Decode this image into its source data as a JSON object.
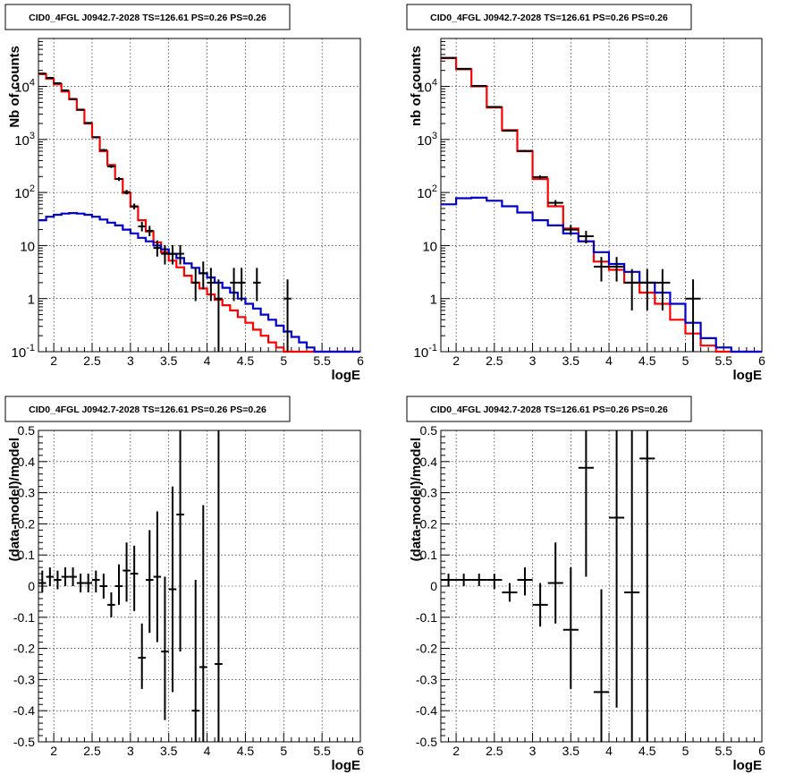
{
  "panel_title": "CID0_4FGL J0942.7-2028 TS=126.61 PS=0.26 PS=0.26",
  "chart_data": [
    {
      "type": "line",
      "subtype": "step-histogram-with-errorbars",
      "title": "CID0_4FGL J0942.7-2028 TS=126.61 PS=0.26 PS=0.26",
      "xlabel": "logE",
      "ylabel": "Nb of counts",
      "xlim": [
        1.8,
        6.0
      ],
      "ylim": [
        0.1,
        80000
      ],
      "yscale": "log",
      "grid": true,
      "xticks": [
        "2",
        "2.5",
        "3",
        "3.5",
        "4",
        "4.5",
        "5",
        "5.5",
        "6"
      ],
      "yticks": [
        {
          "v": 0.1,
          "label": "10^-1"
        },
        {
          "v": 1,
          "label": "1"
        },
        {
          "v": 10,
          "label": "10"
        },
        {
          "v": 100,
          "label": "10^2"
        },
        {
          "v": 1000,
          "label": "10^3"
        },
        {
          "v": 10000,
          "label": "10^4"
        }
      ],
      "bin_width": 0.1,
      "bin_start": 1.8,
      "series": [
        {
          "color": "#ff0000",
          "style": "step",
          "values": [
            17000,
            14000,
            11000,
            8000,
            5700,
            3600,
            2000,
            1100,
            600,
            330,
            180,
            98,
            54,
            30,
            18.5,
            11.5,
            7.5,
            5.2,
            3.9,
            2.7,
            2.0,
            1.55,
            1.2,
            0.95,
            0.75,
            0.6,
            0.45,
            0.35,
            0.26,
            0.2,
            0.15,
            0.12,
            0.1,
            0.1,
            0.1,
            0.1,
            0.1,
            0.1,
            0.1,
            0.1,
            0.1,
            0.1
          ]
        },
        {
          "color": "#0000cc",
          "style": "step",
          "values": [
            30,
            35,
            38,
            40,
            41,
            40,
            38,
            35,
            31,
            27,
            24,
            20,
            17,
            14,
            12,
            10,
            8.5,
            7.0,
            5.8,
            4.6,
            3.8,
            3.0,
            2.5,
            2.0,
            1.6,
            1.3,
            1.0,
            0.8,
            0.65,
            0.5,
            0.4,
            0.31,
            0.24,
            0.19,
            0.15,
            0.12,
            0.1,
            0.1,
            0.1,
            0.1,
            0.1,
            0.1
          ]
        },
        {
          "color": "#000000",
          "style": "points",
          "points": [
            {
              "x": 1.85,
              "y": 17500,
              "lo": 17200,
              "hi": 17800
            },
            {
              "x": 1.95,
              "y": 14500,
              "lo": 14200,
              "hi": 14800
            },
            {
              "x": 2.05,
              "y": 11500,
              "lo": 11200,
              "hi": 11800
            },
            {
              "x": 2.15,
              "y": 8400,
              "lo": 8200,
              "hi": 8600
            },
            {
              "x": 2.25,
              "y": 5800,
              "lo": 5650,
              "hi": 5950
            },
            {
              "x": 2.35,
              "y": 3650,
              "lo": 3550,
              "hi": 3750
            },
            {
              "x": 2.45,
              "y": 2050,
              "lo": 1980,
              "hi": 2120
            },
            {
              "x": 2.55,
              "y": 1100,
              "lo": 1060,
              "hi": 1140
            },
            {
              "x": 2.65,
              "y": 630,
              "lo": 600,
              "hi": 660
            },
            {
              "x": 2.75,
              "y": 310,
              "lo": 290,
              "hi": 330
            },
            {
              "x": 2.85,
              "y": 180,
              "lo": 165,
              "hi": 195
            },
            {
              "x": 2.95,
              "y": 102,
              "lo": 92,
              "hi": 112
            },
            {
              "x": 3.05,
              "y": 55,
              "lo": 48,
              "hi": 62
            },
            {
              "x": 3.15,
              "y": 23,
              "lo": 18.5,
              "hi": 28
            },
            {
              "x": 3.25,
              "y": 19,
              "lo": 15,
              "hi": 23.5
            },
            {
              "x": 3.35,
              "y": 9,
              "lo": 6.2,
              "hi": 12.5
            },
            {
              "x": 3.45,
              "y": 7,
              "lo": 4.4,
              "hi": 10.2
            },
            {
              "x": 3.55,
              "y": 7,
              "lo": 4.4,
              "hi": 10.2
            },
            {
              "x": 3.65,
              "y": 7,
              "lo": 4.4,
              "hi": 10.2
            },
            {
              "x": 3.85,
              "y": 2,
              "lo": 0.9,
              "hi": 3.8
            },
            {
              "x": 3.95,
              "y": 3,
              "lo": 1.5,
              "hi": 5.0
            },
            {
              "x": 4.05,
              "y": 2,
              "lo": 0.9,
              "hi": 3.8
            },
            {
              "x": 4.15,
              "y": 1,
              "lo": 0.1,
              "hi": 2.3
            },
            {
              "x": 4.35,
              "y": 2,
              "lo": 0.9,
              "hi": 3.8
            },
            {
              "x": 4.45,
              "y": 2,
              "lo": 0.9,
              "hi": 3.8
            },
            {
              "x": 4.65,
              "y": 2,
              "lo": 0.9,
              "hi": 3.8
            },
            {
              "x": 5.05,
              "y": 1,
              "lo": 0.1,
              "hi": 2.3
            }
          ]
        }
      ]
    },
    {
      "type": "line",
      "subtype": "step-histogram-with-errorbars",
      "title": "CID0_4FGL J0942.7-2028 TS=126.61 PS=0.26 PS=0.26",
      "xlabel": "logE",
      "ylabel": "nb of counts",
      "xlim": [
        1.8,
        6.0
      ],
      "ylim": [
        0.1,
        80000
      ],
      "yscale": "log",
      "grid": true,
      "xticks": [
        "2",
        "2.5",
        "3",
        "3.5",
        "4",
        "4.5",
        "5",
        "5.5",
        "6"
      ],
      "yticks": [
        {
          "v": 0.1,
          "label": "10^-1"
        },
        {
          "v": 1,
          "label": "1"
        },
        {
          "v": 10,
          "label": "10"
        },
        {
          "v": 100,
          "label": "10^2"
        },
        {
          "v": 1000,
          "label": "10^3"
        },
        {
          "v": 10000,
          "label": "10^4"
        }
      ],
      "bin_width": 0.2,
      "bin_start": 1.8,
      "series": [
        {
          "color": "#ff0000",
          "style": "step",
          "values": [
            34000,
            21000,
            10000,
            4000,
            1500,
            600,
            180,
            55,
            21,
            12,
            5.0,
            3.5,
            2.0,
            1.3,
            0.8,
            0.4,
            0.22,
            0.13,
            0.1,
            0.1,
            0.1
          ]
        },
        {
          "color": "#0000cc",
          "style": "step",
          "values": [
            60,
            78,
            80,
            70,
            55,
            42,
            30,
            24,
            17,
            12,
            7.5,
            4.5,
            3.2,
            2.0,
            1.3,
            0.8,
            0.35,
            0.18,
            0.12,
            0.1,
            0.1
          ]
        },
        {
          "color": "#000000",
          "style": "points",
          "points": [
            {
              "x": 1.9,
              "y": 34500,
              "lo": 34000,
              "hi": 35000
            },
            {
              "x": 2.1,
              "y": 21500,
              "lo": 21100,
              "hi": 21900
            },
            {
              "x": 2.3,
              "y": 10200,
              "lo": 10000,
              "hi": 10400
            },
            {
              "x": 2.5,
              "y": 4100,
              "lo": 4000,
              "hi": 4200
            },
            {
              "x": 2.7,
              "y": 1460,
              "lo": 1420,
              "hi": 1500
            },
            {
              "x": 2.9,
              "y": 610,
              "lo": 585,
              "hi": 635
            },
            {
              "x": 3.1,
              "y": 195,
              "lo": 180,
              "hi": 210
            },
            {
              "x": 3.3,
              "y": 64,
              "lo": 56,
              "hi": 72
            },
            {
              "x": 3.5,
              "y": 20,
              "lo": 15.8,
              "hi": 24.5
            },
            {
              "x": 3.7,
              "y": 15,
              "lo": 11,
              "hi": 19
            },
            {
              "x": 3.9,
              "y": 4,
              "lo": 2.1,
              "hi": 6.1
            },
            {
              "x": 4.1,
              "y": 4,
              "lo": 2.1,
              "hi": 6.1
            },
            {
              "x": 4.3,
              "y": 2,
              "lo": 0.6,
              "hi": 3.6
            },
            {
              "x": 4.5,
              "y": 2,
              "lo": 0.6,
              "hi": 3.6
            },
            {
              "x": 4.7,
              "y": 2,
              "lo": 0.6,
              "hi": 3.6
            },
            {
              "x": 5.1,
              "y": 1,
              "lo": 0.1,
              "hi": 2.3
            }
          ]
        }
      ]
    },
    {
      "type": "scatter",
      "subtype": "errorbars",
      "title": "CID0_4FGL J0942.7-2028 TS=126.61 PS=0.26 PS=0.26",
      "xlabel": "logE",
      "ylabel": "(data-model)/model",
      "xlim": [
        1.8,
        6.0
      ],
      "ylim": [
        -0.5,
        0.5
      ],
      "grid": true,
      "xticks": [
        "2",
        "2.5",
        "3",
        "3.5",
        "4",
        "4.5",
        "5",
        "5.5",
        "6"
      ],
      "yticks": [
        "-0.5",
        "-0.4",
        "-0.3",
        "-0.2",
        "-0.1",
        "0",
        "0.1",
        "0.2",
        "0.3",
        "0.4",
        "0.5"
      ],
      "bin_width": 0.1,
      "series": [
        {
          "color": "#000000",
          "points": [
            {
              "x": 1.85,
              "y": 0.01,
              "lo": -0.02,
              "hi": 0.05
            },
            {
              "x": 1.95,
              "y": 0.03,
              "lo": 0.0,
              "hi": 0.06
            },
            {
              "x": 2.05,
              "y": 0.02,
              "lo": -0.01,
              "hi": 0.05
            },
            {
              "x": 2.15,
              "y": 0.03,
              "lo": 0.0,
              "hi": 0.06
            },
            {
              "x": 2.25,
              "y": 0.03,
              "lo": 0.0,
              "hi": 0.06
            },
            {
              "x": 2.35,
              "y": 0.01,
              "lo": -0.02,
              "hi": 0.04
            },
            {
              "x": 2.45,
              "y": 0.01,
              "lo": -0.02,
              "hi": 0.04
            },
            {
              "x": 2.55,
              "y": 0.02,
              "lo": -0.02,
              "hi": 0.05
            },
            {
              "x": 2.65,
              "y": 0.0,
              "lo": -0.04,
              "hi": 0.04
            },
            {
              "x": 2.75,
              "y": -0.06,
              "lo": -0.1,
              "hi": -0.02
            },
            {
              "x": 2.85,
              "y": 0.0,
              "lo": -0.06,
              "hi": 0.07
            },
            {
              "x": 2.95,
              "y": 0.05,
              "lo": -0.05,
              "hi": 0.14
            },
            {
              "x": 3.05,
              "y": 0.04,
              "lo": -0.08,
              "hi": 0.13
            },
            {
              "x": 3.15,
              "y": -0.23,
              "lo": -0.33,
              "hi": -0.12
            },
            {
              "x": 3.25,
              "y": 0.02,
              "lo": -0.15,
              "hi": 0.18
            },
            {
              "x": 3.35,
              "y": 0.03,
              "lo": -0.18,
              "hi": 0.24
            },
            {
              "x": 3.45,
              "y": -0.21,
              "lo": -0.43,
              "hi": 0.03
            },
            {
              "x": 3.55,
              "y": -0.01,
              "lo": -0.34,
              "hi": 0.32
            },
            {
              "x": 3.65,
              "y": 0.23,
              "lo": -0.21,
              "hi": 0.5
            },
            {
              "x": 3.85,
              "y": -0.4,
              "lo": -0.5,
              "hi": 0.02
            },
            {
              "x": 3.95,
              "y": -0.26,
              "lo": -0.5,
              "hi": 0.26
            },
            {
              "x": 4.15,
              "y": -0.25,
              "lo": -0.5,
              "hi": 0.5
            }
          ]
        }
      ]
    },
    {
      "type": "scatter",
      "subtype": "errorbars",
      "title": "CID0_4FGL J0942.7-2028 TS=126.61 PS=0.26 PS=0.26",
      "xlabel": "logE",
      "ylabel": "(data-model)/model",
      "xlim": [
        1.8,
        6.0
      ],
      "ylim": [
        -0.5,
        0.5
      ],
      "grid": true,
      "xticks": [
        "2",
        "2.5",
        "3",
        "3.5",
        "4",
        "4.5",
        "5",
        "5.5",
        "6"
      ],
      "yticks": [
        "-0.5",
        "-0.4",
        "-0.3",
        "-0.2",
        "-0.1",
        "0",
        "0.1",
        "0.2",
        "0.3",
        "0.4",
        "0.5"
      ],
      "bin_width": 0.2,
      "series": [
        {
          "color": "#000000",
          "points": [
            {
              "x": 1.9,
              "y": 0.02,
              "lo": 0.0,
              "hi": 0.04
            },
            {
              "x": 2.1,
              "y": 0.02,
              "lo": 0.0,
              "hi": 0.04
            },
            {
              "x": 2.3,
              "y": 0.02,
              "lo": 0.0,
              "hi": 0.04
            },
            {
              "x": 2.5,
              "y": 0.02,
              "lo": -0.01,
              "hi": 0.04
            },
            {
              "x": 2.7,
              "y": -0.02,
              "lo": -0.05,
              "hi": 0.01
            },
            {
              "x": 2.9,
              "y": 0.02,
              "lo": -0.03,
              "hi": 0.06
            },
            {
              "x": 3.1,
              "y": -0.06,
              "lo": -0.13,
              "hi": 0.01
            },
            {
              "x": 3.3,
              "y": 0.01,
              "lo": -0.12,
              "hi": 0.14
            },
            {
              "x": 3.5,
              "y": -0.14,
              "lo": -0.33,
              "hi": 0.06
            },
            {
              "x": 3.7,
              "y": 0.38,
              "lo": 0.03,
              "hi": 0.5
            },
            {
              "x": 3.9,
              "y": -0.34,
              "lo": -0.5,
              "hi": -0.01
            },
            {
              "x": 4.1,
              "y": 0.22,
              "lo": -0.39,
              "hi": 0.5
            },
            {
              "x": 4.3,
              "y": -0.02,
              "lo": -0.5,
              "hi": 0.5
            },
            {
              "x": 4.5,
              "y": 0.41,
              "lo": -0.5,
              "hi": 0.5
            }
          ]
        }
      ]
    }
  ]
}
